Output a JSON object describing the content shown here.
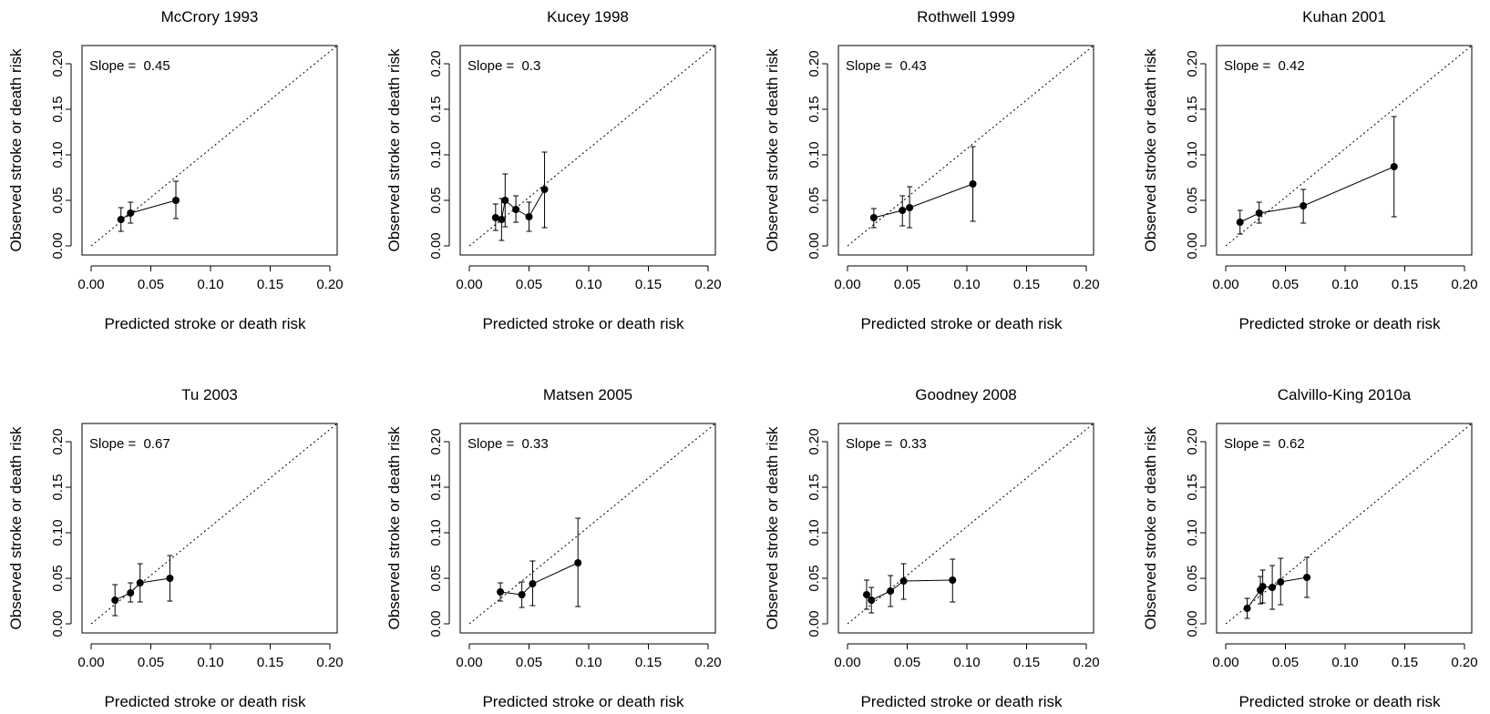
{
  "figure": {
    "xlabel": "Predicted stroke or death risk",
    "ylabel": "Observed stroke or death risk",
    "slope_prefix": "Slope = ",
    "reference_line": "identity (dotted)"
  },
  "chart_data": [
    {
      "type": "scatter",
      "title": "McCrory 1993",
      "slope": "0.45",
      "xlabel": "Predicted stroke or death risk",
      "ylabel": "Observed stroke or death risk",
      "xlim": [
        0,
        0.2
      ],
      "ylim": [
        0,
        0.2
      ],
      "ticks": [
        "0.00",
        "0.05",
        "0.10",
        "0.15",
        "0.20"
      ],
      "points": [
        {
          "x": 0.025,
          "y": 0.029,
          "lo": 0.016,
          "hi": 0.042
        },
        {
          "x": 0.033,
          "y": 0.036,
          "lo": 0.025,
          "hi": 0.048
        },
        {
          "x": 0.071,
          "y": 0.05,
          "lo": 0.03,
          "hi": 0.071
        }
      ]
    },
    {
      "type": "scatter",
      "title": "Kucey 1998",
      "slope": "0.3",
      "xlabel": "Predicted stroke or death risk",
      "ylabel": "Observed stroke or death risk",
      "xlim": [
        0,
        0.2
      ],
      "ylim": [
        0,
        0.2
      ],
      "ticks": [
        "0.00",
        "0.05",
        "0.10",
        "0.15",
        "0.20"
      ],
      "points": [
        {
          "x": 0.022,
          "y": 0.031,
          "lo": 0.017,
          "hi": 0.046
        },
        {
          "x": 0.027,
          "y": 0.029,
          "lo": 0.006,
          "hi": 0.052
        },
        {
          "x": 0.03,
          "y": 0.05,
          "lo": 0.021,
          "hi": 0.079
        },
        {
          "x": 0.039,
          "y": 0.04,
          "lo": 0.026,
          "hi": 0.055
        },
        {
          "x": 0.05,
          "y": 0.032,
          "lo": 0.016,
          "hi": 0.048
        },
        {
          "x": 0.063,
          "y": 0.062,
          "lo": 0.02,
          "hi": 0.103
        }
      ]
    },
    {
      "type": "scatter",
      "title": "Rothwell 1999",
      "slope": "0.43",
      "xlabel": "Predicted stroke or death risk",
      "ylabel": "Observed stroke or death risk",
      "xlim": [
        0,
        0.2
      ],
      "ylim": [
        0,
        0.2
      ],
      "ticks": [
        "0.00",
        "0.05",
        "0.10",
        "0.15",
        "0.20"
      ],
      "points": [
        {
          "x": 0.022,
          "y": 0.031,
          "lo": 0.02,
          "hi": 0.041
        },
        {
          "x": 0.046,
          "y": 0.039,
          "lo": 0.022,
          "hi": 0.055
        },
        {
          "x": 0.052,
          "y": 0.042,
          "lo": 0.02,
          "hi": 0.065
        },
        {
          "x": 0.105,
          "y": 0.068,
          "lo": 0.027,
          "hi": 0.109
        }
      ]
    },
    {
      "type": "scatter",
      "title": "Kuhan 2001",
      "slope": "0.42",
      "xlabel": "Predicted stroke or death risk",
      "ylabel": "Observed stroke or death risk",
      "xlim": [
        0,
        0.2
      ],
      "ylim": [
        0,
        0.2
      ],
      "ticks": [
        "0.00",
        "0.05",
        "0.10",
        "0.15",
        "0.20"
      ],
      "points": [
        {
          "x": 0.012,
          "y": 0.026,
          "lo": 0.013,
          "hi": 0.039
        },
        {
          "x": 0.028,
          "y": 0.036,
          "lo": 0.025,
          "hi": 0.048
        },
        {
          "x": 0.065,
          "y": 0.044,
          "lo": 0.025,
          "hi": 0.062
        },
        {
          "x": 0.141,
          "y": 0.087,
          "lo": 0.032,
          "hi": 0.142
        }
      ]
    },
    {
      "type": "scatter",
      "title": "Tu 2003",
      "slope": "0.67",
      "xlabel": "Predicted stroke or death risk",
      "ylabel": "Observed stroke or death risk",
      "xlim": [
        0,
        0.2
      ],
      "ylim": [
        0,
        0.2
      ],
      "ticks": [
        "0.00",
        "0.05",
        "0.10",
        "0.15",
        "0.20"
      ],
      "points": [
        {
          "x": 0.02,
          "y": 0.026,
          "lo": 0.009,
          "hi": 0.043
        },
        {
          "x": 0.033,
          "y": 0.034,
          "lo": 0.024,
          "hi": 0.045
        },
        {
          "x": 0.041,
          "y": 0.045,
          "lo": 0.024,
          "hi": 0.066
        },
        {
          "x": 0.066,
          "y": 0.05,
          "lo": 0.025,
          "hi": 0.075
        }
      ]
    },
    {
      "type": "scatter",
      "title": "Matsen 2005",
      "slope": "0.33",
      "xlabel": "Predicted stroke or death risk",
      "ylabel": "Observed stroke or death risk",
      "xlim": [
        0,
        0.2
      ],
      "ylim": [
        0,
        0.2
      ],
      "ticks": [
        "0.00",
        "0.05",
        "0.10",
        "0.15",
        "0.20"
      ],
      "points": [
        {
          "x": 0.026,
          "y": 0.035,
          "lo": 0.025,
          "hi": 0.045
        },
        {
          "x": 0.044,
          "y": 0.032,
          "lo": 0.018,
          "hi": 0.046
        },
        {
          "x": 0.053,
          "y": 0.044,
          "lo": 0.02,
          "hi": 0.069
        },
        {
          "x": 0.091,
          "y": 0.067,
          "lo": 0.019,
          "hi": 0.116
        }
      ]
    },
    {
      "type": "scatter",
      "title": "Goodney 2008",
      "slope": "0.33",
      "xlabel": "Predicted stroke or death risk",
      "ylabel": "Observed stroke or death risk",
      "xlim": [
        0,
        0.2
      ],
      "ylim": [
        0,
        0.2
      ],
      "ticks": [
        "0.00",
        "0.05",
        "0.10",
        "0.15",
        "0.20"
      ],
      "points": [
        {
          "x": 0.016,
          "y": 0.032,
          "lo": 0.016,
          "hi": 0.048
        },
        {
          "x": 0.02,
          "y": 0.026,
          "lo": 0.012,
          "hi": 0.04
        },
        {
          "x": 0.036,
          "y": 0.036,
          "lo": 0.019,
          "hi": 0.053
        },
        {
          "x": 0.047,
          "y": 0.047,
          "lo": 0.027,
          "hi": 0.066
        },
        {
          "x": 0.088,
          "y": 0.048,
          "lo": 0.024,
          "hi": 0.071
        }
      ]
    },
    {
      "type": "scatter",
      "title": "Calvillo-King 2010a",
      "slope": "0.62",
      "xlabel": "Predicted stroke or death risk",
      "ylabel": "Observed stroke or death risk",
      "xlim": [
        0,
        0.2
      ],
      "ylim": [
        0,
        0.2
      ],
      "ticks": [
        "0.00",
        "0.05",
        "0.10",
        "0.15",
        "0.20"
      ],
      "points": [
        {
          "x": 0.018,
          "y": 0.017,
          "lo": 0.006,
          "hi": 0.028
        },
        {
          "x": 0.029,
          "y": 0.037,
          "lo": 0.022,
          "hi": 0.052
        },
        {
          "x": 0.031,
          "y": 0.041,
          "lo": 0.023,
          "hi": 0.059
        },
        {
          "x": 0.039,
          "y": 0.04,
          "lo": 0.016,
          "hi": 0.064
        },
        {
          "x": 0.046,
          "y": 0.046,
          "lo": 0.021,
          "hi": 0.072
        },
        {
          "x": 0.068,
          "y": 0.051,
          "lo": 0.029,
          "hi": 0.073
        }
      ]
    }
  ]
}
